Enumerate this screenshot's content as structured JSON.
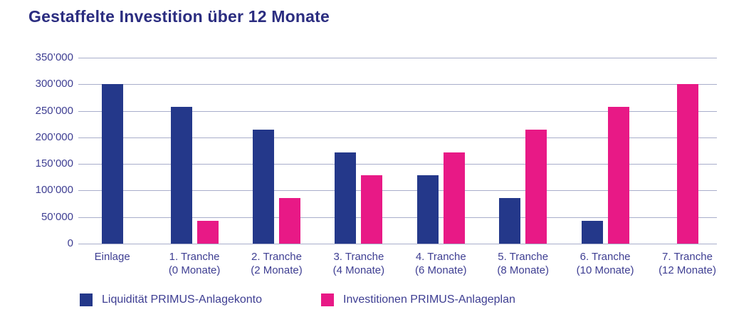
{
  "title": "Gestaffelte Investition über 12 Monate",
  "colors": {
    "bar_blue": "#24388a",
    "bar_pink": "#e81986",
    "text_indigo": "#3e3e92",
    "title_navy": "#2b2d80",
    "gridline": "#a9aecb"
  },
  "chart_data": {
    "type": "bar",
    "title": "Gestaffelte Investition über 12 Monate",
    "categories": [
      "Einlage",
      "1. Tranche\n(0 Monate)",
      "2. Tranche\n(2 Monate)",
      "3. Tranche\n(4 Monate)",
      "4. Tranche\n(6 Monate)",
      "5. Tranche\n(8 Monate)",
      "6. Tranche\n(10 Monate)",
      "7. Tranche\n(12 Monate)"
    ],
    "series": [
      {
        "name": "Liquidität PRIMUS-Anlagekonto",
        "color": "#24388a",
        "values": [
          300000,
          257143,
          214286,
          171429,
          128571,
          85714,
          42857,
          0
        ]
      },
      {
        "name": "Investitionen PRIMUS-Anlageplan",
        "color": "#e81986",
        "values": [
          0,
          42857,
          85714,
          128571,
          171429,
          214286,
          257143,
          300000
        ]
      }
    ],
    "xlabel": "",
    "ylabel": "",
    "ylim": [
      0,
      350000
    ],
    "ytick_step": 50000,
    "ytick_labels": [
      "0",
      "50’000",
      "100’000",
      "150’000",
      "200’000",
      "250’000",
      "300’000",
      "350’000"
    ],
    "grid": true,
    "legend_position": "bottom"
  }
}
